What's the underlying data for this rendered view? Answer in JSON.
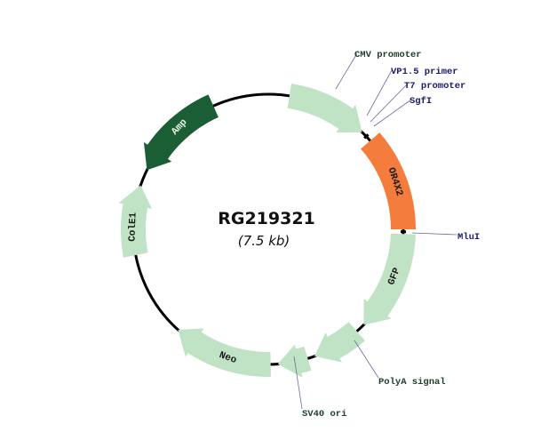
{
  "plasmid": {
    "name": "RG219321",
    "size": "(7.5 kb)"
  },
  "colors": {
    "backbone": "#000000",
    "feature": "#bfe3c4",
    "insert": "#f47c3c",
    "amp": "#1b5e35",
    "label_green": "#1f3d2b",
    "label_navy": "#1a1a6e",
    "leader": "#6a6a9a"
  },
  "features": [
    {
      "id": "cmv",
      "label": "",
      "kind": "arrow"
    },
    {
      "id": "or4x2",
      "label": "OR4X2",
      "kind": "insert"
    },
    {
      "id": "gfp",
      "label": "GFP",
      "kind": "arrow"
    },
    {
      "id": "polya",
      "label": "",
      "kind": "arrow"
    },
    {
      "id": "sv40",
      "label": "",
      "kind": "arrow"
    },
    {
      "id": "neo",
      "label": "Neo",
      "kind": "arrow"
    },
    {
      "id": "cole1",
      "label": "ColE1",
      "kind": "arrow"
    },
    {
      "id": "amp",
      "label": "Amp",
      "kind": "arrow"
    }
  ],
  "annotations": [
    {
      "id": "cmv-promoter",
      "label": "CMV promoter",
      "color": "green"
    },
    {
      "id": "vp15-primer",
      "label": "VP1.5 primer",
      "color": "navy"
    },
    {
      "id": "t7-promoter",
      "label": "T7 promoter",
      "color": "navy"
    },
    {
      "id": "sgfi",
      "label": "SgfI",
      "color": "navy"
    },
    {
      "id": "mlui",
      "label": "MluI",
      "color": "navy"
    },
    {
      "id": "polya-signal",
      "label": "PolyA signal",
      "color": "green"
    },
    {
      "id": "sv40-ori",
      "label": "SV40 ori",
      "color": "green"
    }
  ]
}
